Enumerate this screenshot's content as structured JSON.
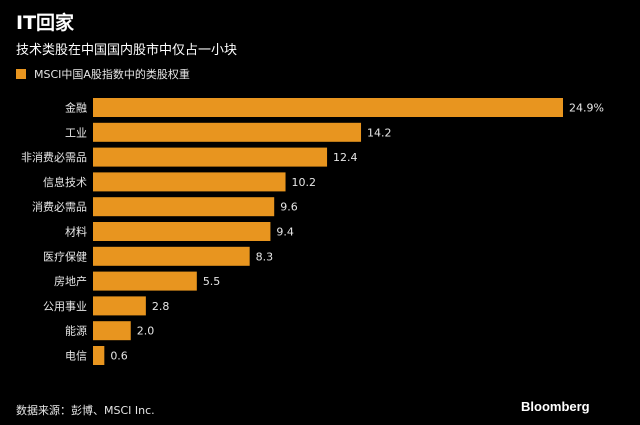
{
  "title": "IT回家",
  "subtitle": "技术类股在中国国内股市中仅占一小块",
  "legend": {
    "label": "MSCI中国A股指数中的类股权重",
    "color": "#e8951f"
  },
  "source": "数据来源：彭博、MSCI Inc.",
  "brand": "Bloomberg",
  "colors": {
    "background": "#000000",
    "bar": "#e8951f",
    "text": "#ffffff",
    "muted": "#e6e6e6"
  },
  "chart_data": {
    "type": "bar",
    "orientation": "horizontal",
    "title": "IT回家",
    "subtitle": "技术类股在中国国内股市中仅占一小块",
    "categories": [
      "金融",
      "工业",
      "非消费必需品",
      "信息技术",
      "消费必需品",
      "材料",
      "医疗保健",
      "房地产",
      "公用事业",
      "能源",
      "电信"
    ],
    "series": [
      {
        "name": "MSCI中国A股指数中的类股权重",
        "values": [
          24.9,
          14.2,
          12.4,
          10.2,
          9.6,
          9.4,
          8.3,
          5.5,
          2.8,
          2.0,
          0.6
        ]
      }
    ],
    "value_labels": [
      "24.9%",
      "14.2",
      "12.4",
      "10.2",
      "9.6",
      "9.4",
      "8.3",
      "5.5",
      "2.8",
      "2.0",
      "0.6"
    ],
    "xlim": [
      0,
      24.9
    ],
    "xlabel": "",
    "ylabel": "",
    "grid": false,
    "legend_position": "top-left"
  }
}
